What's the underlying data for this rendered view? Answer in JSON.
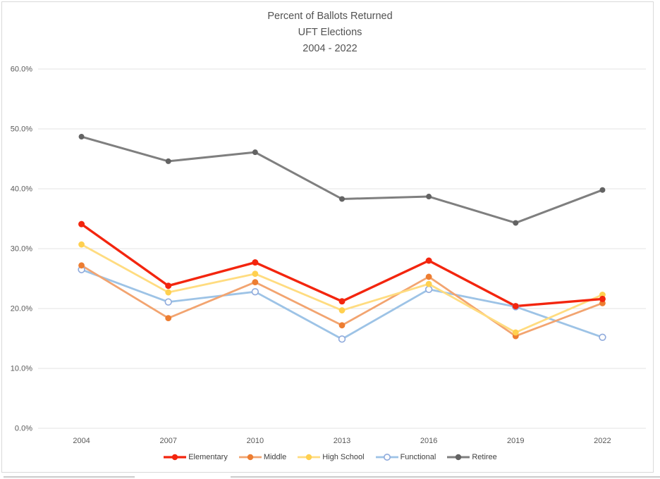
{
  "page": {
    "background": "#ffffff",
    "frame_border_color": "#d9d9d9"
  },
  "chart_data": {
    "type": "line",
    "title_lines": [
      "Percent of Ballots Returned",
      "UFT Elections",
      "2004 - 2022"
    ],
    "categories": [
      "2004",
      "2007",
      "2010",
      "2013",
      "2016",
      "2019",
      "2022"
    ],
    "series": [
      {
        "name": "Elementary",
        "values": [
          34.1,
          23.8,
          27.7,
          21.2,
          28.0,
          20.4,
          21.6
        ],
        "line_color": "#f3250e",
        "marker_color": "#f3250e",
        "marker": "filled",
        "line_width": 3.4,
        "marker_radius": 4.5
      },
      {
        "name": "Middle",
        "values": [
          27.2,
          18.4,
          24.4,
          17.2,
          25.3,
          15.4,
          20.9
        ],
        "line_color": "#f2a470",
        "marker_color": "#ed7d31",
        "marker": "filled",
        "line_width": 2.8,
        "marker_radius": 4.4
      },
      {
        "name": "High School",
        "values": [
          30.7,
          22.7,
          25.8,
          19.7,
          24.1,
          16.0,
          22.3
        ],
        "line_color": "#ffdc80",
        "marker_color": "#ffd04f",
        "marker": "filled",
        "line_width": 2.8,
        "marker_radius": 4.4
      },
      {
        "name": "Functional",
        "values": [
          26.5,
          21.1,
          22.8,
          14.9,
          23.2,
          20.3,
          15.2
        ],
        "line_color": "#9dc3e6",
        "marker_color": "#8faadc",
        "marker": "open",
        "line_width": 2.8,
        "marker_radius": 4.4
      },
      {
        "name": "Retiree",
        "values": [
          48.7,
          44.6,
          46.1,
          38.3,
          38.7,
          34.3,
          39.8
        ],
        "line_color": "#7f7f7f",
        "marker_color": "#636363",
        "marker": "filled",
        "line_width": 3.0,
        "marker_radius": 4.0
      }
    ],
    "draw_order": [
      3,
      1,
      2,
      0,
      4
    ],
    "y_ticks": [
      {
        "label": "60.0%",
        "value": 60
      },
      {
        "label": "50.0%",
        "value": 50
      },
      {
        "label": "40.0%",
        "value": 40
      },
      {
        "label": "30.0%",
        "value": 30
      },
      {
        "label": "20.0%",
        "value": 20
      },
      {
        "label": "10.0%",
        "value": 10
      },
      {
        "label": "0.0%",
        "value": 0
      }
    ],
    "ylim": [
      0,
      60
    ],
    "grid": true,
    "legend_position": "bottom",
    "grid_color": "#e3e3e3",
    "axis_label_color": "#595959",
    "title_color": "#525252",
    "open_marker_fill": "#fdfdfd"
  }
}
